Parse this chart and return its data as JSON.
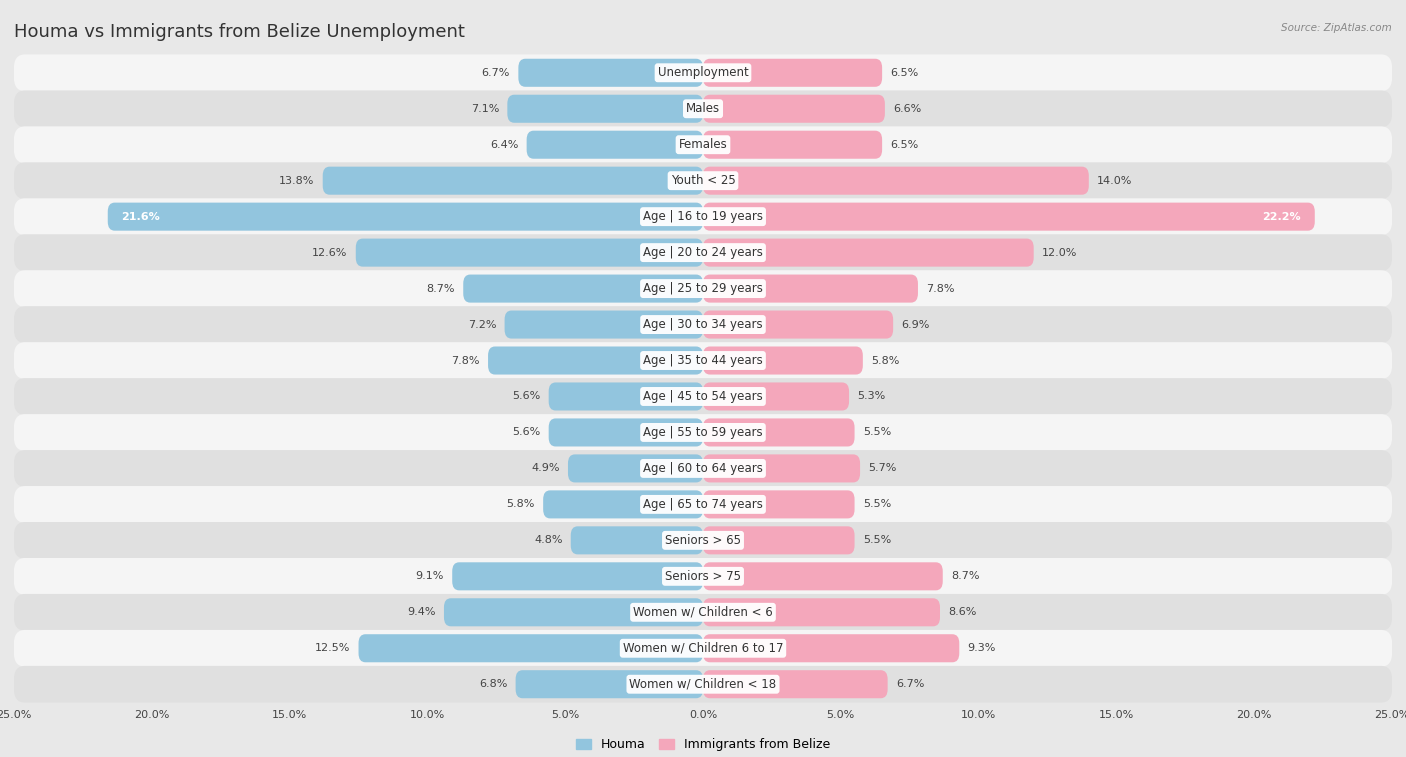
{
  "title": "Houma vs Immigrants from Belize Unemployment",
  "source": "Source: ZipAtlas.com",
  "categories": [
    "Unemployment",
    "Males",
    "Females",
    "Youth < 25",
    "Age | 16 to 19 years",
    "Age | 20 to 24 years",
    "Age | 25 to 29 years",
    "Age | 30 to 34 years",
    "Age | 35 to 44 years",
    "Age | 45 to 54 years",
    "Age | 55 to 59 years",
    "Age | 60 to 64 years",
    "Age | 65 to 74 years",
    "Seniors > 65",
    "Seniors > 75",
    "Women w/ Children < 6",
    "Women w/ Children 6 to 17",
    "Women w/ Children < 18"
  ],
  "houma_values": [
    6.7,
    7.1,
    6.4,
    13.8,
    21.6,
    12.6,
    8.7,
    7.2,
    7.8,
    5.6,
    5.6,
    4.9,
    5.8,
    4.8,
    9.1,
    9.4,
    12.5,
    6.8
  ],
  "belize_values": [
    6.5,
    6.6,
    6.5,
    14.0,
    22.2,
    12.0,
    7.8,
    6.9,
    5.8,
    5.3,
    5.5,
    5.7,
    5.5,
    5.5,
    8.7,
    8.6,
    9.3,
    6.7
  ],
  "houma_color": "#92C5DE",
  "belize_color": "#F4A7BB",
  "houma_label": "Houma",
  "belize_label": "Immigrants from Belize",
  "xlim": 25.0,
  "background_color": "#e8e8e8",
  "row_color_light": "#f5f5f5",
  "row_color_dark": "#e0e0e0",
  "title_fontsize": 13,
  "label_fontsize": 8.5,
  "value_fontsize": 8,
  "bar_height": 0.78
}
